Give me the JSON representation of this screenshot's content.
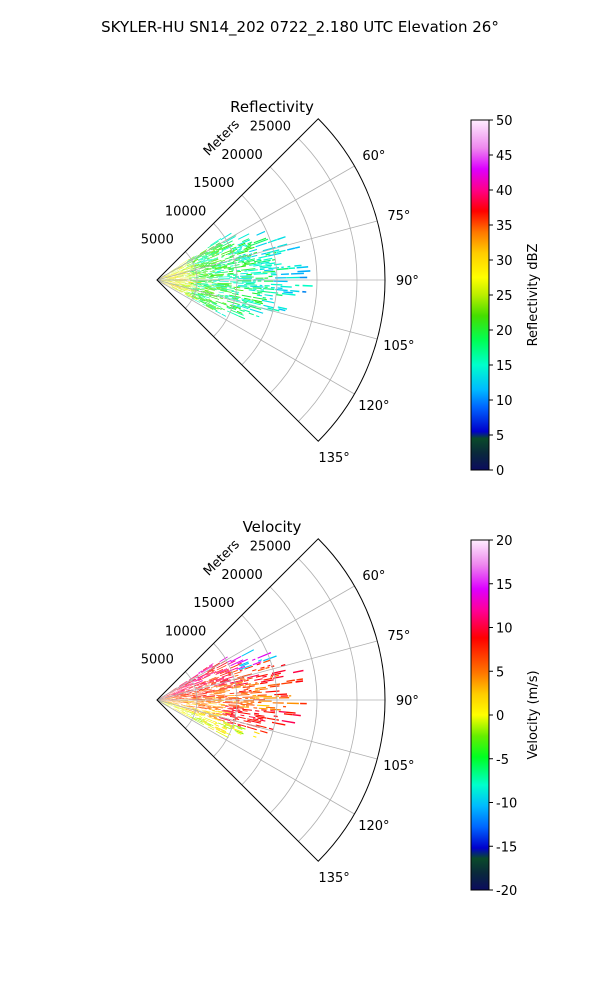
{
  "figure": {
    "title": "SKYLER-HU  SN14_202  0722_2.180 UTC Elevation 26°",
    "range_label": "Meters"
  },
  "chart_data": [
    {
      "type": "heatmap",
      "title": "Reflectivity",
      "projection": "polar-sector",
      "theta_range_deg": [
        45,
        135
      ],
      "theta_ticks_deg": [
        60,
        75,
        90,
        105,
        120,
        135
      ],
      "theta_tick_labels": [
        "60°",
        "75°",
        "90°",
        "105°",
        "120°",
        "135°"
      ],
      "r_range_m": [
        0,
        28500
      ],
      "r_ticks_m": [
        5000,
        10000,
        15000,
        20000,
        25000
      ],
      "r_tick_labels": [
        "5000",
        "10000",
        "15000",
        "20000",
        "25000"
      ],
      "grid": true,
      "data_extent": {
        "theta_deg": [
          57,
          118
        ],
        "r_m": [
          0,
          19000
        ]
      },
      "dominant_value_range": [
        10,
        25
      ],
      "colorbar": {
        "label": "Reflectivity dBZ",
        "vmin": 0,
        "vmax": 50,
        "ticks": [
          0,
          5,
          10,
          15,
          20,
          25,
          30,
          35,
          40,
          45,
          50
        ],
        "tick_labels": [
          "0",
          "5",
          "10",
          "15",
          "20",
          "25",
          "30",
          "35",
          "40",
          "45",
          "50"
        ]
      }
    },
    {
      "type": "heatmap",
      "title": "Velocity",
      "projection": "polar-sector",
      "theta_range_deg": [
        45,
        135
      ],
      "theta_ticks_deg": [
        60,
        75,
        90,
        105,
        120,
        135
      ],
      "theta_tick_labels": [
        "60°",
        "75°",
        "90°",
        "105°",
        "120°",
        "135°"
      ],
      "r_range_m": [
        0,
        28500
      ],
      "r_ticks_m": [
        5000,
        10000,
        15000,
        20000,
        25000
      ],
      "r_tick_labels": [
        "5000",
        "10000",
        "15000",
        "20000",
        "25000"
      ],
      "grid": true,
      "data_extent": {
        "theta_deg": [
          57,
          118
        ],
        "r_m": [
          0,
          19000
        ]
      },
      "dominant_value_range": [
        0,
        15
      ],
      "colorbar": {
        "label": "Velocity (m/s)",
        "vmin": -20,
        "vmax": 20,
        "ticks": [
          -20,
          -15,
          -10,
          -5,
          0,
          5,
          10,
          15,
          20
        ],
        "tick_labels": [
          "-20",
          "-15",
          "-10",
          "-5",
          "0",
          "5",
          "10",
          "15",
          "20"
        ]
      }
    }
  ]
}
